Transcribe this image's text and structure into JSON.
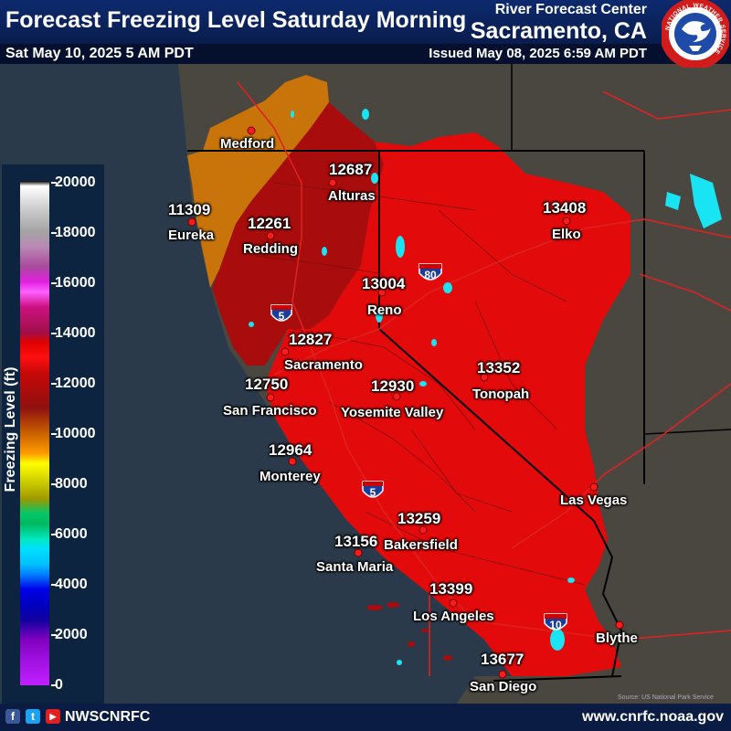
{
  "header": {
    "title": "Forecast Freezing Level Saturday Morning",
    "valid_time": "Sat May 10, 2025 5 AM PDT",
    "agency": "River Forecast Center",
    "office": "Sacramento, CA",
    "issued": "Issued May 08, 2025 6:59 AM PDT"
  },
  "logo": {
    "icon": "nws-logo-icon",
    "ring_text": "NATIONAL WEATHER SERVICE"
  },
  "legend": {
    "title": "Freezing Level (ft)",
    "ticks": [
      "20000",
      "18000",
      "16000",
      "14000",
      "12000",
      "10000",
      "8000",
      "6000",
      "4000",
      "2000",
      "0"
    ]
  },
  "cities": [
    {
      "name": "Medford",
      "value": ""
    },
    {
      "name": "Eureka",
      "value": "11309"
    },
    {
      "name": "Alturas",
      "value": "12687"
    },
    {
      "name": "Redding",
      "value": "12261"
    },
    {
      "name": "Elko",
      "value": "13408"
    },
    {
      "name": "Reno",
      "value": "13004"
    },
    {
      "name": "Sacramento",
      "value": "12827"
    },
    {
      "name": "San Francisco",
      "value": "12750"
    },
    {
      "name": "Yosemite Valley",
      "value": "12930"
    },
    {
      "name": "Tonopah",
      "value": "13352"
    },
    {
      "name": "Monterey",
      "value": "12964"
    },
    {
      "name": "Las Vegas",
      "value": ""
    },
    {
      "name": "Bakersfield",
      "value": "13259"
    },
    {
      "name": "Santa Maria",
      "value": "13156"
    },
    {
      "name": "Los Angeles",
      "value": "13399"
    },
    {
      "name": "Blythe",
      "value": ""
    },
    {
      "name": "San Diego",
      "value": "13677"
    }
  ],
  "highways": [
    {
      "icon": "interstate-shield-icon",
      "number": "80"
    },
    {
      "icon": "interstate-shield-icon",
      "number": "5"
    },
    {
      "icon": "interstate-shield-icon",
      "number": "5"
    },
    {
      "icon": "interstate-shield-icon",
      "number": "10"
    }
  ],
  "credit": "Source: US National Park Service",
  "footer": {
    "social_icons": [
      "facebook-icon",
      "twitter-icon",
      "youtube-icon"
    ],
    "handle": "NWSCNRFC",
    "url": "www.cnrfc.noaa.gov"
  },
  "colors": {
    "header_bg": "#0d2a6e",
    "footer_bg": "#0a1c44",
    "ocean": "#2b3a4a",
    "land": "#4a4740",
    "fzl_11k": "#c8740a",
    "fzl_12k": "#a80c0c",
    "fzl_13k": "#e20a0a",
    "lakes": "#18e4f4"
  }
}
